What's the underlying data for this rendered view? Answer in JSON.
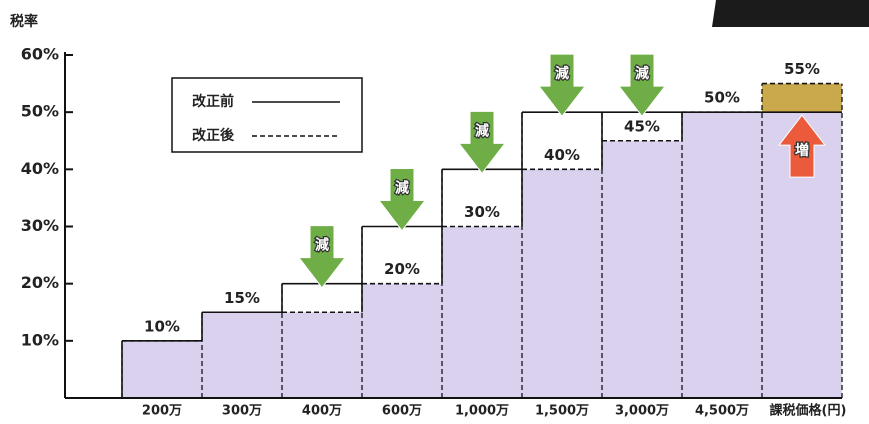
{
  "chart_data": {
    "type": "step-bar",
    "y_label": "税率",
    "x_label": "課税価格(円)",
    "categories": [
      "200万",
      "300万",
      "400万",
      "600万",
      "1,000万",
      "1,500万",
      "3,000万",
      "4,500万",
      null
    ],
    "series": [
      {
        "name": "改正前",
        "color": "#111111",
        "line": "solid",
        "values": [
          10,
          15,
          20,
          30,
          40,
          50,
          50,
          50,
          50
        ]
      },
      {
        "name": "改正後",
        "color": "#111111",
        "line": "dashed",
        "fill": "#d9d1ee",
        "values": [
          10,
          15,
          15,
          20,
          30,
          40,
          45,
          50,
          55
        ],
        "value_labels": [
          "10%",
          "15%",
          null,
          "20%",
          "30%",
          "40%",
          "45%",
          "50%",
          "55%"
        ]
      }
    ],
    "change_labels": [
      null,
      null,
      "減",
      "減",
      "減",
      "減",
      "減",
      null,
      "増"
    ],
    "decrease_color": "#6fae46",
    "increase_color": "#ec5a3c",
    "increase_fill": "#c9a94c",
    "ylim": [
      0,
      60
    ],
    "yticks": [
      {
        "value": 10,
        "label": "10%"
      },
      {
        "value": 20,
        "label": "20%"
      },
      {
        "value": 30,
        "label": "30%"
      },
      {
        "value": 40,
        "label": "40%"
      },
      {
        "value": 50,
        "label": "50%"
      },
      {
        "value": 60,
        "label": "60%"
      }
    ]
  }
}
